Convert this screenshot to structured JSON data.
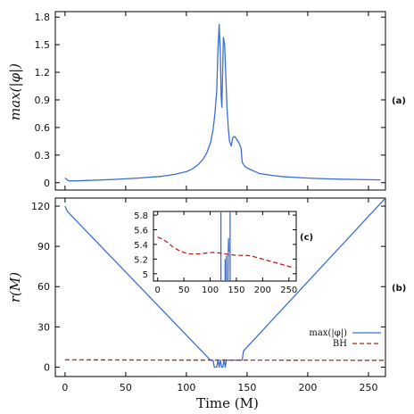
{
  "chart_data": [
    {
      "panel": "a",
      "type": "line",
      "panel_label": "(a)",
      "xlabel": "",
      "ylabel": "max(|φ|)",
      "xlim": [
        -8,
        264
      ],
      "ylim": [
        -0.08,
        1.86
      ],
      "yticks": [
        "0",
        "0.3",
        "0.6",
        "0.9",
        "1.2",
        "1.5",
        "1.8"
      ],
      "ytick_values": [
        0,
        0.3,
        0.6,
        0.9,
        1.2,
        1.5,
        1.8
      ],
      "xtick_values": [
        0,
        50,
        100,
        150,
        200,
        250
      ],
      "series": [
        {
          "name": "max(|φ|)",
          "color": "#3b6fd6",
          "x": [
            0,
            3,
            10,
            20,
            40,
            60,
            80,
            90,
            100,
            105,
            110,
            114,
            117,
            120,
            122,
            123.5,
            125,
            126,
            127,
            128,
            128.6,
            129.2,
            130.5,
            131.5,
            132.5,
            133.5,
            134.5,
            135.5,
            137,
            138,
            139,
            140,
            141,
            143,
            145,
            146,
            148,
            150,
            155,
            160,
            170,
            180,
            200,
            220,
            240,
            260
          ],
          "y": [
            0.05,
            0.02,
            0.02,
            0.025,
            0.035,
            0.05,
            0.07,
            0.09,
            0.12,
            0.15,
            0.2,
            0.26,
            0.33,
            0.44,
            0.58,
            0.75,
            1.0,
            1.45,
            1.72,
            1.4,
            0.95,
            0.82,
            1.58,
            1.5,
            1.15,
            0.8,
            0.6,
            0.45,
            0.4,
            0.48,
            0.5,
            0.5,
            0.48,
            0.44,
            0.38,
            0.22,
            0.18,
            0.16,
            0.13,
            0.1,
            0.08,
            0.065,
            0.05,
            0.04,
            0.035,
            0.03
          ]
        }
      ]
    },
    {
      "panel": "b",
      "type": "line",
      "panel_label": "(b)",
      "xlabel": "Time (M)",
      "ylabel": "r(M)",
      "xlim": [
        -8,
        264
      ],
      "ylim": [
        -7,
        126
      ],
      "yticks": [
        "0",
        "30",
        "60",
        "90",
        "120"
      ],
      "ytick_values": [
        0,
        30,
        60,
        90,
        120
      ],
      "xticks": [
        "0",
        "50",
        "100",
        "150",
        "200",
        "250"
      ],
      "xtick_values": [
        0,
        50,
        100,
        150,
        200,
        250
      ],
      "legend": [
        {
          "label": "max(|φ|)",
          "style": "solid",
          "color": "#3b6fd6"
        },
        {
          "label": "BH",
          "style": "dashed",
          "color": "#b5221b"
        }
      ],
      "legend_position": "bottom-right",
      "series": [
        {
          "name": "max(|φ|)",
          "color": "#3b6fd6",
          "x": [
            0,
            2,
            120,
            122,
            123,
            125,
            126,
            127,
            128,
            129,
            130,
            131,
            132,
            133,
            134,
            136,
            140,
            146,
            147,
            148,
            264
          ],
          "y": [
            120,
            116,
            5,
            5,
            0,
            0,
            5.4,
            0,
            5.3,
            0,
            0,
            5.5,
            0,
            5.4,
            5.2,
            5.2,
            5.2,
            5.2,
            12,
            13,
            126
          ]
        },
        {
          "name": "BH",
          "color": "#b5221b",
          "dashed": true,
          "x": [
            0,
            50,
            100,
            150,
            200,
            264
          ],
          "y": [
            5.5,
            5.35,
            5.25,
            5.25,
            5.15,
            5.08
          ]
        }
      ]
    },
    {
      "panel": "c",
      "type": "line",
      "panel_label": "(c)",
      "xlabel": "",
      "ylabel": "",
      "inset_of": "b",
      "xlim": [
        -8,
        264
      ],
      "ylim": [
        4.9,
        5.85
      ],
      "yticks": [
        "5",
        "5.2",
        "5.4",
        "5.6",
        "5.8"
      ],
      "ytick_values": [
        5,
        5.2,
        5.4,
        5.6,
        5.8
      ],
      "xticks": [
        "0",
        "50",
        "100",
        "150",
        "200",
        "250"
      ],
      "xtick_values": [
        0,
        50,
        100,
        150,
        200,
        250
      ],
      "series": [
        {
          "name": "max(|φ|)",
          "color": "#3b6fd6",
          "segments": [
            {
              "x": [
                120.5,
                120.5
              ],
              "y": [
                4.9,
                5.85
              ]
            },
            {
              "x": [
                128.5,
                128.5
              ],
              "y": [
                4.9,
                5.2
              ]
            },
            {
              "x": [
                131,
                131
              ],
              "y": [
                4.9,
                5.25
              ]
            },
            {
              "x": [
                134,
                134.5,
                135,
                135.5
              ],
              "y": [
                4.9,
                5.3,
                5.48,
                5.3
              ]
            },
            {
              "x": [
                136,
                137
              ],
              "y": [
                5.25,
                5.25
              ]
            },
            {
              "x": [
                138,
                138
              ],
              "y": [
                4.9,
                5.85
              ]
            }
          ]
        },
        {
          "name": "BH",
          "color": "#b5221b",
          "dashed": true,
          "x": [
            0,
            10,
            20,
            30,
            40,
            50,
            60,
            70,
            80,
            90,
            100,
            110,
            120,
            130,
            140,
            150,
            160,
            170,
            180,
            190,
            200,
            210,
            220,
            230,
            240,
            250,
            260
          ],
          "y": [
            5.5,
            5.47,
            5.42,
            5.36,
            5.32,
            5.29,
            5.27,
            5.27,
            5.27,
            5.28,
            5.29,
            5.29,
            5.28,
            5.27,
            5.26,
            5.25,
            5.25,
            5.25,
            5.24,
            5.22,
            5.2,
            5.18,
            5.16,
            5.14,
            5.12,
            5.1,
            5.08
          ]
        }
      ]
    }
  ]
}
